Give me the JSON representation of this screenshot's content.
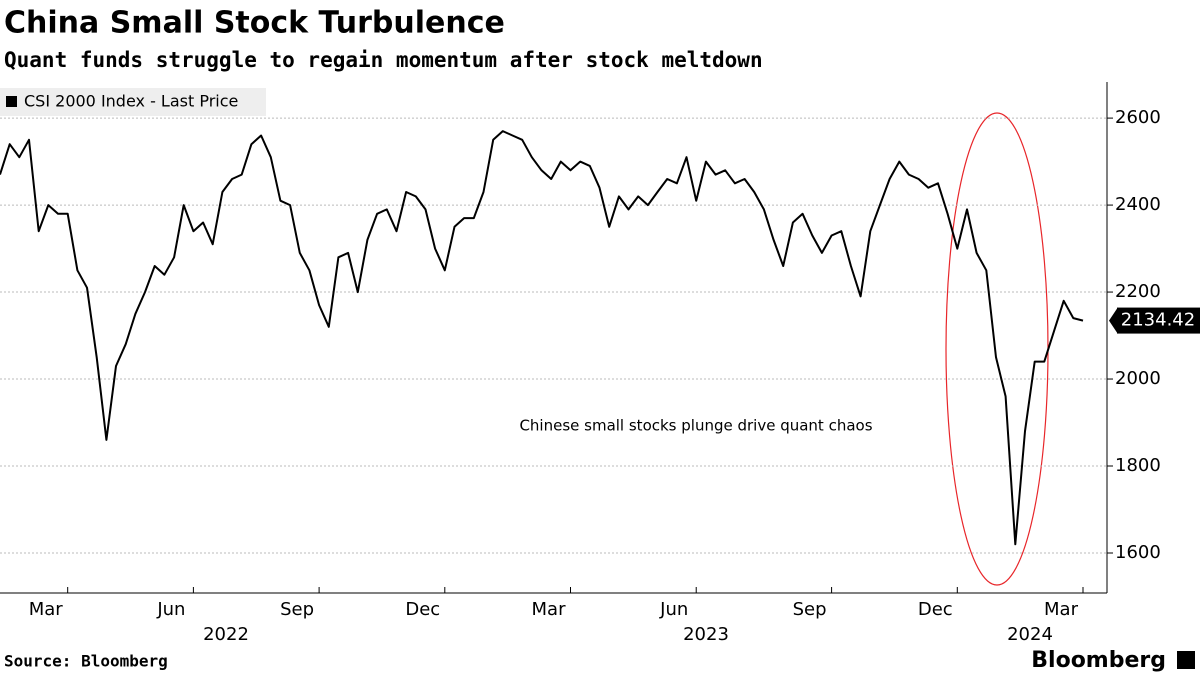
{
  "chart_data": {
    "type": "line",
    "title": "China Small Stock Turbulence",
    "subtitle": "Quant funds struggle to regain momentum after stock meltdown",
    "annotation": "Chinese small stocks plunge drive quant chaos",
    "source": "Source: Bloomberg",
    "brand": "Bloomberg",
    "years": [
      "2022",
      "2023",
      "2024"
    ],
    "categories": [
      null,
      null,
      null,
      null,
      null,
      null,
      null,
      "Mar",
      null,
      null,
      null,
      null,
      null,
      null,
      null,
      null,
      null,
      null,
      null,
      null,
      "Jun",
      null,
      null,
      null,
      null,
      null,
      null,
      null,
      null,
      null,
      null,
      null,
      null,
      "Sep",
      null,
      null,
      null,
      null,
      null,
      null,
      null,
      null,
      null,
      null,
      null,
      null,
      "Dec",
      null,
      null,
      null,
      null,
      null,
      null,
      null,
      null,
      null,
      null,
      null,
      null,
      "Mar",
      null,
      null,
      null,
      null,
      null,
      null,
      null,
      null,
      null,
      null,
      null,
      null,
      "Jun",
      null,
      null,
      null,
      null,
      null,
      null,
      null,
      null,
      null,
      null,
      null,
      null,
      null,
      "Sep",
      null,
      null,
      null,
      null,
      null,
      null,
      null,
      null,
      null,
      null,
      null,
      null,
      "Dec",
      null,
      null,
      null,
      null,
      null,
      null,
      null,
      null,
      null,
      null,
      null,
      null,
      "Mar"
    ],
    "series": [
      {
        "name": "CSI 2000 Index - Last Price",
        "color": "#000000",
        "values": [
          2470,
          2540,
          2510,
          2550,
          2340,
          2400,
          2380,
          2380,
          2250,
          2210,
          2050,
          1860,
          2030,
          2080,
          2150,
          2200,
          2260,
          2240,
          2280,
          2400,
          2340,
          2360,
          2310,
          2430,
          2460,
          2470,
          2540,
          2560,
          2510,
          2410,
          2400,
          2290,
          2250,
          2170,
          2120,
          2280,
          2290,
          2200,
          2320,
          2380,
          2390,
          2340,
          2430,
          2420,
          2390,
          2300,
          2250,
          2350,
          2370,
          2370,
          2430,
          2550,
          2570,
          2560,
          2550,
          2510,
          2480,
          2460,
          2500,
          2480,
          2500,
          2490,
          2440,
          2350,
          2420,
          2390,
          2420,
          2400,
          2430,
          2460,
          2450,
          2510,
          2410,
          2500,
          2470,
          2480,
          2450,
          2460,
          2430,
          2390,
          2320,
          2260,
          2360,
          2380,
          2330,
          2290,
          2330,
          2340,
          2260,
          2190,
          2340,
          2400,
          2460,
          2500,
          2470,
          2460,
          2440,
          2450,
          2380,
          2300,
          2390,
          2290,
          2250,
          2050,
          1960,
          1620,
          1880,
          2040,
          2040,
          2110,
          2180,
          2140,
          2134.42
        ]
      }
    ],
    "ylim": [
      1508,
      2683
    ],
    "yticks": [
      1600,
      1800,
      2000,
      2200,
      2400,
      2600
    ],
    "grid": true
  }
}
